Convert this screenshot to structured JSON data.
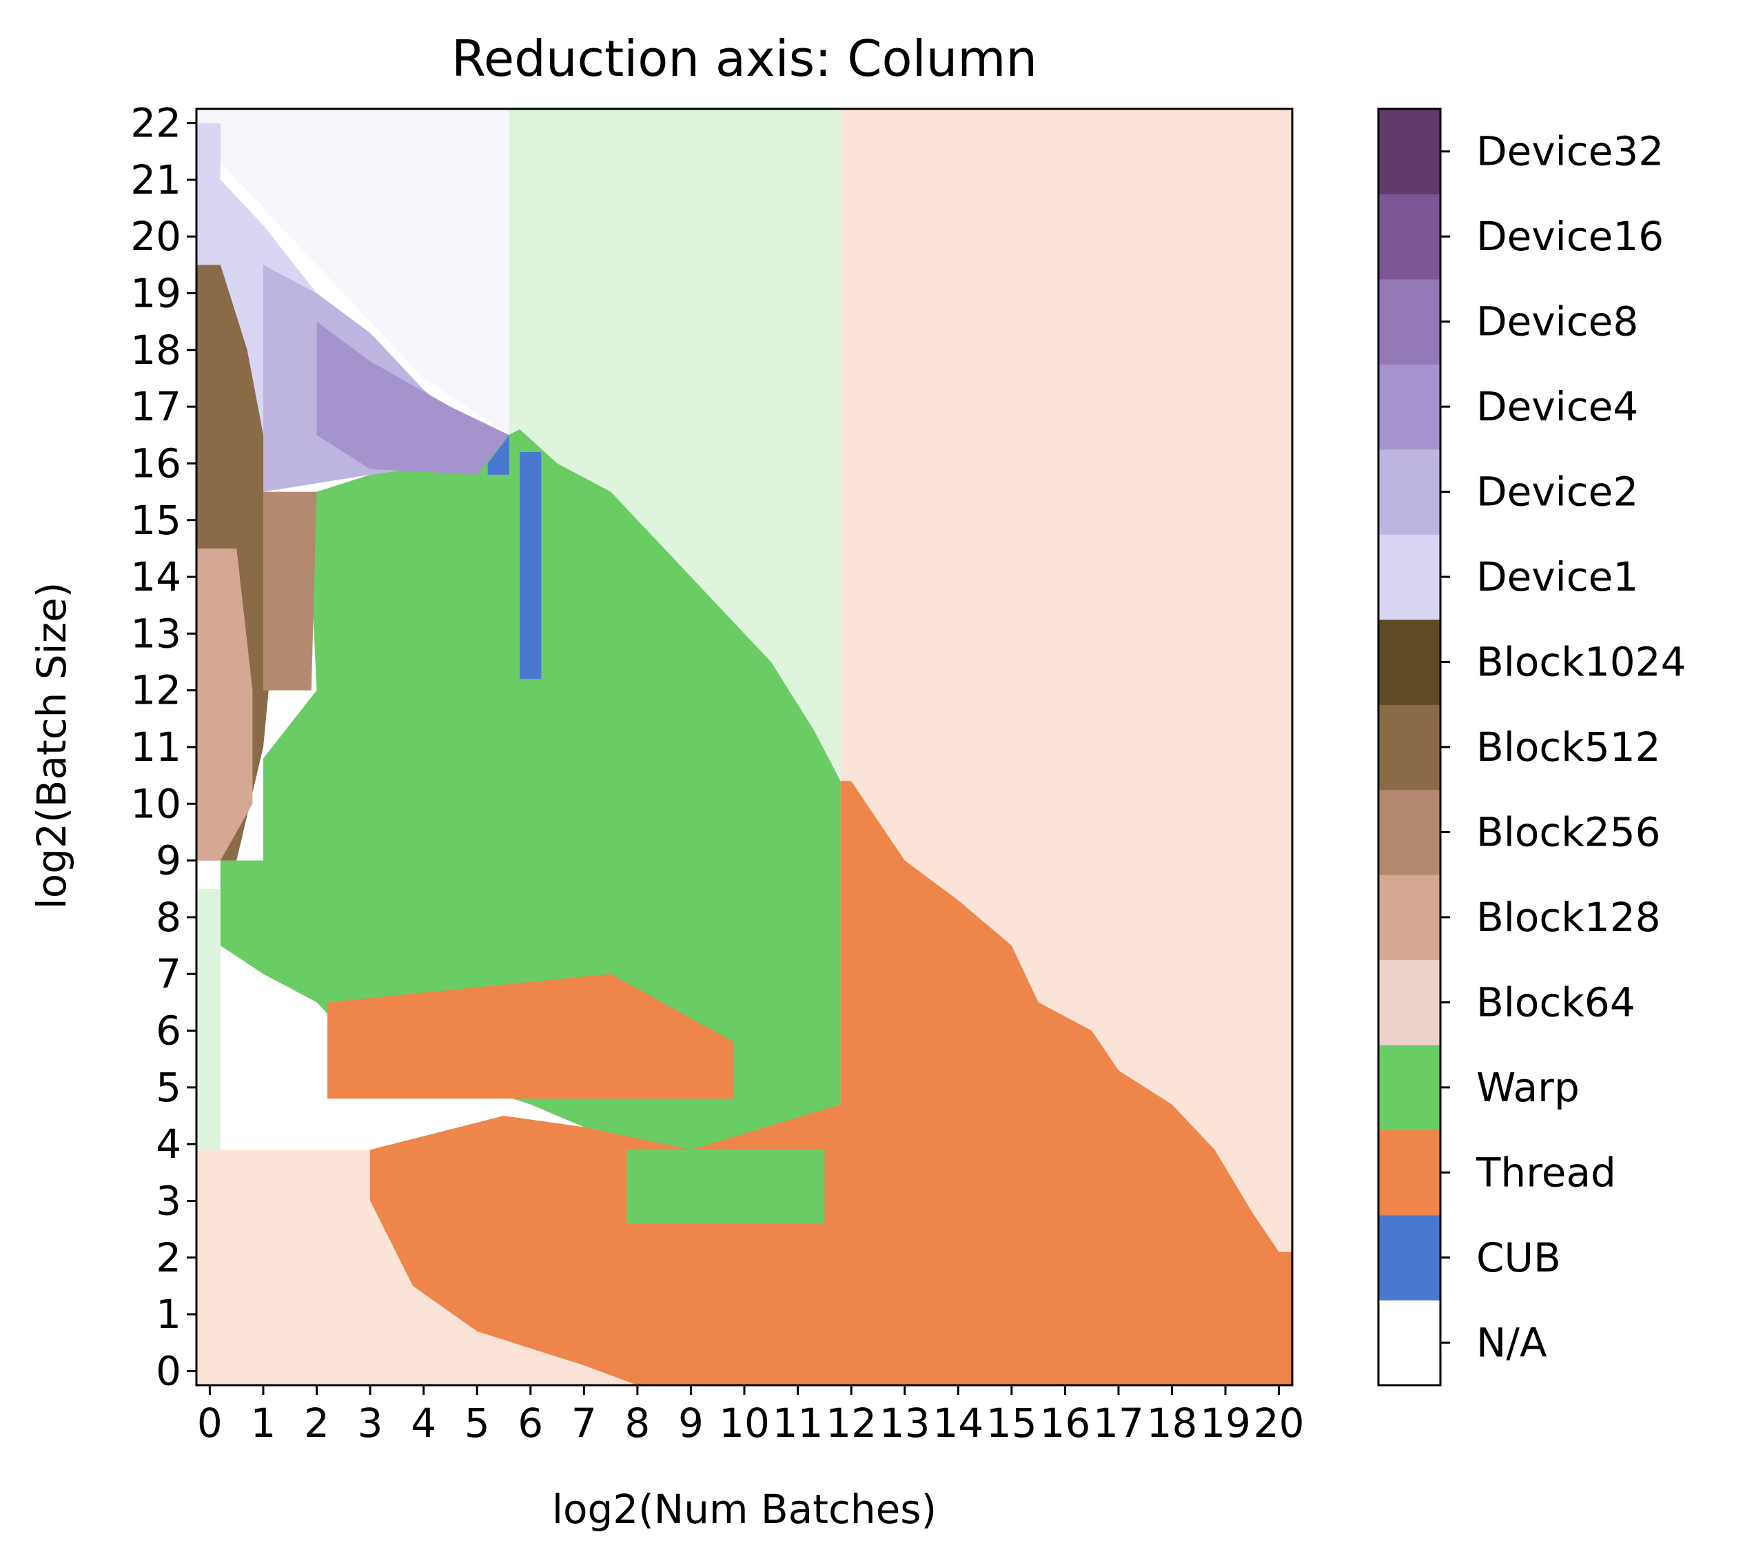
{
  "chart_data": {
    "type": "heatmap",
    "title": "Reduction axis: Column",
    "xlabel": "log2(Num Batches)",
    "ylabel": "log2(Batch Size)",
    "x_ticks": [
      "0",
      "1",
      "2",
      "3",
      "4",
      "5",
      "6",
      "7",
      "8",
      "9",
      "10",
      "11",
      "12",
      "13",
      "14",
      "15",
      "16",
      "17",
      "18",
      "19",
      "20"
    ],
    "y_ticks": [
      "0",
      "1",
      "2",
      "3",
      "4",
      "5",
      "6",
      "7",
      "8",
      "9",
      "10",
      "11",
      "12",
      "13",
      "14",
      "15",
      "16",
      "17",
      "18",
      "19",
      "20",
      "21",
      "22"
    ],
    "xlim": [
      -0.25,
      20.25
    ],
    "ylim": [
      -0.25,
      22.25
    ],
    "colorbar": {
      "labels": [
        "N/A",
        "CUB",
        "Thread",
        "Warp",
        "Block64",
        "Block128",
        "Block256",
        "Block512",
        "Block1024",
        "Device1",
        "Device2",
        "Device4",
        "Device8",
        "Device16",
        "Device32"
      ],
      "colors": [
        "#ffffff",
        "#4878cf",
        "#ee854a",
        "#6acc64",
        "#edd1cb",
        "#d5a896",
        "#b38a6f",
        "#8b6a47",
        "#5e4a25",
        "#d8d6f2",
        "#bdb4e0",
        "#a493cd",
        "#9479b7",
        "#7b5796",
        "#5f3a6b"
      ]
    },
    "regions": [
      {
        "category": "Thread",
        "label": "Thread (predicted, faded)",
        "polygon": [
          [
            -0.25,
            -0.25
          ],
          [
            -0.25,
            3.9
          ],
          [
            3.2,
            3.9
          ],
          [
            5.5,
            3.0
          ],
          [
            7.0,
            2.2
          ],
          [
            8.0,
            1.7
          ],
          [
            9.0,
            1.2
          ],
          [
            20.25,
            1.2
          ],
          [
            20.25,
            -0.25
          ]
        ]
      },
      {
        "category": "Thread",
        "label": "Thread (predicted, faded)",
        "polygon": [
          [
            11.8,
            22.25
          ],
          [
            20.25,
            22.25
          ],
          [
            20.25,
            1.2
          ],
          [
            11.8,
            1.2
          ]
        ]
      },
      {
        "category": "Warp",
        "label": "Warp (predicted, faded)",
        "polygon": [
          [
            5.6,
            22.25
          ],
          [
            11.8,
            22.25
          ],
          [
            11.8,
            10.5
          ],
          [
            5.6,
            16.5
          ]
        ]
      },
      {
        "category": "Warp",
        "label": "Warp (predicted, faded)",
        "polygon": [
          [
            -0.25,
            8.5
          ],
          [
            0.2,
            8.5
          ],
          [
            0.2,
            3.9
          ],
          [
            -0.25,
            3.9
          ]
        ]
      },
      {
        "category": "Warp",
        "label": "Warp",
        "polygon": [
          [
            0.2,
            9.0
          ],
          [
            1.0,
            9.0
          ],
          [
            1.0,
            10.8
          ],
          [
            2.0,
            12.0
          ],
          [
            1.9,
            14.0
          ],
          [
            2.0,
            15.5
          ],
          [
            3.0,
            15.8
          ],
          [
            4.5,
            16.0
          ],
          [
            5.8,
            16.6
          ],
          [
            6.5,
            16.0
          ],
          [
            7.5,
            15.5
          ],
          [
            8.5,
            14.5
          ],
          [
            9.5,
            13.5
          ],
          [
            10.5,
            12.5
          ],
          [
            11.3,
            11.3
          ],
          [
            11.8,
            10.4
          ],
          [
            11.8,
            4.7
          ],
          [
            11.0,
            4.2
          ],
          [
            10.0,
            3.8
          ],
          [
            9.0,
            3.8
          ],
          [
            8.0,
            4.0
          ],
          [
            7.0,
            4.3
          ],
          [
            6.0,
            4.7
          ],
          [
            5.0,
            5.0
          ],
          [
            4.0,
            5.0
          ],
          [
            3.0,
            5.5
          ],
          [
            2.0,
            6.5
          ],
          [
            1.0,
            7.0
          ],
          [
            0.2,
            7.5
          ]
        ]
      },
      {
        "category": "Thread",
        "label": "Thread",
        "polygon": [
          [
            3.0,
            3.9
          ],
          [
            5.5,
            4.5
          ],
          [
            7.0,
            4.3
          ],
          [
            9.0,
            3.9
          ],
          [
            11.8,
            4.7
          ],
          [
            11.8,
            10.4
          ],
          [
            12.0,
            10.4
          ],
          [
            13.0,
            9.0
          ],
          [
            14.0,
            8.3
          ],
          [
            15.0,
            7.5
          ],
          [
            15.5,
            6.5
          ],
          [
            16.5,
            6.0
          ],
          [
            17.0,
            5.3
          ],
          [
            18.0,
            4.7
          ],
          [
            18.8,
            3.9
          ],
          [
            19.5,
            2.8
          ],
          [
            20.0,
            2.1
          ],
          [
            20.25,
            2.1
          ],
          [
            20.25,
            -0.25
          ],
          [
            8.0,
            -0.25
          ],
          [
            7.0,
            0.1
          ],
          [
            6.0,
            0.4
          ],
          [
            5.0,
            0.7
          ],
          [
            3.8,
            1.5
          ],
          [
            3.0,
            3.0
          ]
        ]
      },
      {
        "category": "Device1",
        "label": "Device1 (predicted, faded)",
        "polygon": [
          [
            -0.25,
            22.25
          ],
          [
            5.6,
            22.25
          ],
          [
            5.6,
            16.5
          ],
          [
            4.0,
            17.5
          ],
          [
            3.0,
            18.5
          ],
          [
            2.0,
            19.5
          ],
          [
            1.0,
            20.5
          ],
          [
            0.0,
            21.5
          ],
          [
            -0.25,
            21.5
          ]
        ]
      },
      {
        "category": "Device1",
        "label": "Device1",
        "polygon": [
          [
            -0.25,
            22.0
          ],
          [
            0.2,
            22.0
          ],
          [
            0.2,
            21.0
          ],
          [
            1.0,
            20.2
          ],
          [
            2.0,
            19.0
          ],
          [
            3.0,
            18.0
          ],
          [
            4.0,
            17.2
          ],
          [
            5.0,
            16.5
          ],
          [
            5.6,
            16.5
          ],
          [
            4.0,
            16.5
          ],
          [
            3.0,
            15.8
          ],
          [
            1.0,
            15.8
          ],
          [
            0.5,
            17.0
          ],
          [
            0.2,
            19.5
          ],
          [
            -0.25,
            19.5
          ]
        ]
      },
      {
        "category": "Device2",
        "label": "Device2",
        "polygon": [
          [
            1.0,
            19.5
          ],
          [
            2.0,
            19.0
          ],
          [
            3.0,
            18.3
          ],
          [
            4.0,
            17.3
          ],
          [
            5.0,
            16.5
          ],
          [
            4.5,
            16.0
          ],
          [
            3.0,
            15.8
          ],
          [
            1.0,
            15.5
          ]
        ]
      },
      {
        "category": "Device4",
        "label": "Device4",
        "polygon": [
          [
            2.0,
            18.5
          ],
          [
            3.0,
            17.8
          ],
          [
            4.5,
            17.0
          ],
          [
            5.6,
            16.5
          ],
          [
            5.0,
            15.8
          ],
          [
            3.0,
            15.9
          ],
          [
            2.0,
            16.5
          ]
        ]
      },
      {
        "category": "Block512",
        "label": "Block512",
        "polygon": [
          [
            -0.25,
            19.5
          ],
          [
            0.2,
            19.5
          ],
          [
            0.7,
            18.0
          ],
          [
            1.0,
            16.5
          ],
          [
            1.0,
            15.5
          ],
          [
            1.5,
            15.0
          ],
          [
            1.2,
            13.0
          ],
          [
            1.0,
            11.0
          ],
          [
            0.5,
            9.0
          ],
          [
            -0.25,
            9.0
          ]
        ]
      },
      {
        "category": "Block128",
        "label": "Block128",
        "polygon": [
          [
            -0.25,
            14.5
          ],
          [
            0.5,
            14.5
          ],
          [
            0.8,
            12.0
          ],
          [
            0.8,
            10.0
          ],
          [
            0.2,
            9.0
          ],
          [
            -0.25,
            9.0
          ]
        ]
      },
      {
        "category": "Block256",
        "label": "Block256",
        "polygon": [
          [
            1.0,
            15.5
          ],
          [
            2.0,
            15.5
          ],
          [
            1.9,
            12.0
          ],
          [
            1.0,
            12.0
          ]
        ]
      },
      {
        "category": "CUB",
        "label": "CUB",
        "polygon": [
          [
            5.2,
            16.0
          ],
          [
            5.6,
            16.5
          ],
          [
            5.6,
            15.8
          ],
          [
            5.2,
            15.8
          ]
        ]
      },
      {
        "category": "CUB",
        "label": "CUB",
        "polygon": [
          [
            5.8,
            16.2
          ],
          [
            6.2,
            16.2
          ],
          [
            6.2,
            12.2
          ],
          [
            5.8,
            12.2
          ]
        ]
      },
      {
        "category": "Thread",
        "label": "Thread patches",
        "polygon": [
          [
            2.2,
            6.5
          ],
          [
            7.5,
            7.0
          ],
          [
            9.8,
            5.8
          ],
          [
            9.8,
            4.8
          ],
          [
            2.2,
            4.8
          ]
        ]
      },
      {
        "category": "Warp",
        "label": "Warp patch",
        "polygon": [
          [
            7.8,
            3.9
          ],
          [
            11.5,
            3.9
          ],
          [
            11.5,
            2.6
          ],
          [
            7.8,
            2.6
          ]
        ]
      }
    ]
  }
}
